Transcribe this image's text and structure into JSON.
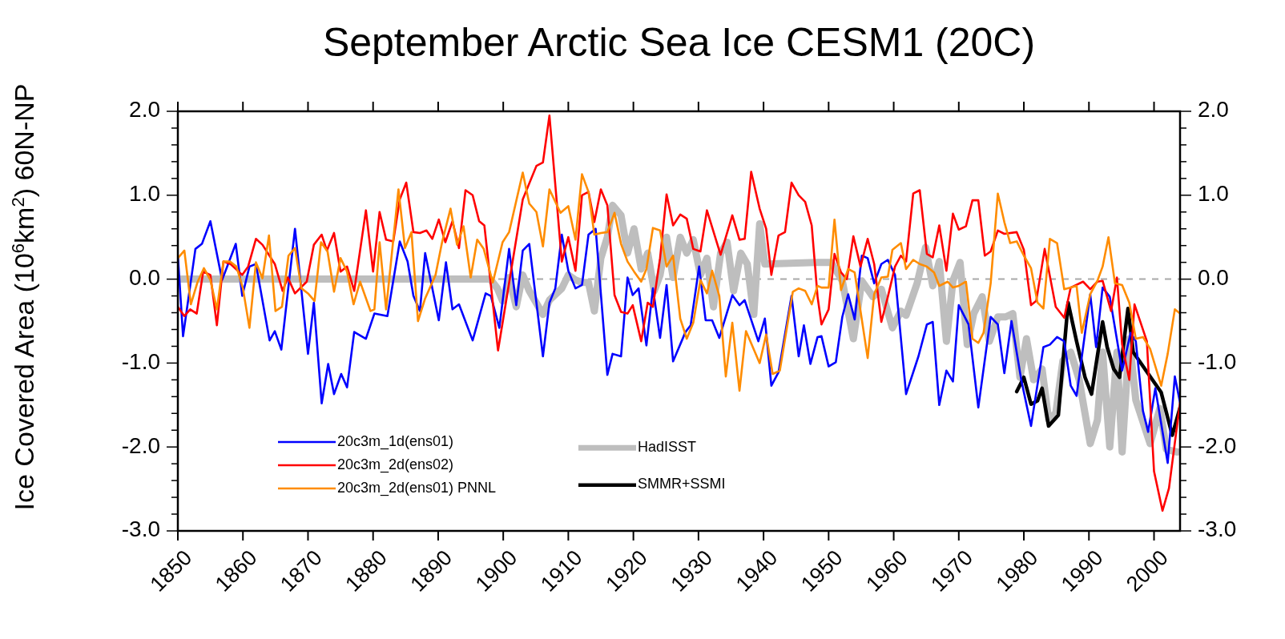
{
  "chart_data": {
    "type": "line",
    "title": "September Arctic Sea Ice CESM1 (20C)",
    "ylabel": "Ice Covered Area (10$^{6}$km$^{2}$) 60N-NP",
    "xlim": [
      1850,
      2004
    ],
    "xticks": [
      1850,
      1860,
      1870,
      1880,
      1890,
      1900,
      1910,
      1920,
      1930,
      1940,
      1950,
      1960,
      1970,
      1980,
      1990,
      2000
    ],
    "ylim": [
      -3,
      2
    ],
    "yticks": [
      {
        "value": -3,
        "label": "-3.0"
      },
      {
        "value": -2.8,
        "label": null
      },
      {
        "value": -2.6,
        "label": null
      },
      {
        "value": -2.4,
        "label": null
      },
      {
        "value": -2.2,
        "label": null
      },
      {
        "value": -2,
        "label": "-2.0"
      },
      {
        "value": -1.8,
        "label": null
      },
      {
        "value": -1.6,
        "label": null
      },
      {
        "value": -1.4,
        "label": null
      },
      {
        "value": -1.2,
        "label": null
      },
      {
        "value": -1,
        "label": "-1.0"
      },
      {
        "value": -0.8,
        "label": null
      },
      {
        "value": -0.6,
        "label": null
      },
      {
        "value": -0.4,
        "label": null
      },
      {
        "value": -0.2,
        "label": null
      },
      {
        "value": 0,
        "label": "0.0"
      },
      {
        "value": 0.2,
        "label": null
      },
      {
        "value": 0.4,
        "label": null
      },
      {
        "value": 0.6,
        "label": null
      },
      {
        "value": 0.8,
        "label": null
      },
      {
        "value": 1,
        "label": "1.0"
      },
      {
        "value": 1.2,
        "label": null
      },
      {
        "value": 1.4,
        "label": null
      },
      {
        "value": 1.6,
        "label": null
      },
      {
        "value": 1.8,
        "label": null
      },
      {
        "value": 2,
        "label": "2.0"
      }
    ],
    "y2lim": [
      -3,
      2
    ],
    "y2ticks": [
      {
        "value": -3,
        "label": "-3.0"
      },
      {
        "value": -2.8,
        "label": null
      },
      {
        "value": -2.6,
        "label": null
      },
      {
        "value": -2.4,
        "label": null
      },
      {
        "value": -2.2,
        "label": null
      },
      {
        "value": -2,
        "label": "-2.0"
      },
      {
        "value": -1.8,
        "label": null
      },
      {
        "value": -1.6,
        "label": null
      },
      {
        "value": -1.4,
        "label": null
      },
      {
        "value": -1.2,
        "label": null
      },
      {
        "value": -1,
        "label": "-1.0"
      },
      {
        "value": -0.8,
        "label": null
      },
      {
        "value": -0.6,
        "label": null
      },
      {
        "value": -0.4,
        "label": null
      },
      {
        "value": -0.2,
        "label": null
      },
      {
        "value": 0,
        "label": "0.0"
      },
      {
        "value": 0.2,
        "label": null
      },
      {
        "value": 0.4,
        "label": null
      },
      {
        "value": 0.6,
        "label": null
      },
      {
        "value": 0.8,
        "label": null
      },
      {
        "value": 1,
        "label": "1.0"
      },
      {
        "value": 1.2,
        "label": null
      },
      {
        "value": 1.4,
        "label": null
      },
      {
        "value": 1.6,
        "label": null
      },
      {
        "value": 1.8,
        "label": null
      },
      {
        "value": 2,
        "label": "2.0"
      }
    ],
    "ref_lines": [
      {
        "axis": "y",
        "value": 0,
        "color": "#a8a8a8",
        "line_style": "dashed"
      }
    ],
    "legend": "bottom left",
    "grid": false,
    "marker": "none",
    "line_style": "solid",
    "series": [
      {
        "name": "20c3m_1d(ens01)",
        "color": "#0000ff",
        "x": [
          1850,
          1850.8,
          1852.7,
          1853.7,
          1855,
          1856.8,
          1858.9,
          1859.9,
          1861,
          1862,
          1864.1,
          1864.9,
          1865.9,
          1868,
          1870,
          1870.9,
          1872.1,
          1873.1,
          1874,
          1875.1,
          1876,
          1877.1,
          1878.9,
          1880.2,
          1882.2,
          1884.1,
          1885.3,
          1886.2,
          1887.2,
          1888,
          1890.1,
          1891.2,
          1892.2,
          1893.2,
          1895.3,
          1897.3,
          1898.1,
          1899.4,
          1900.9,
          1902,
          1903,
          1904,
          1906.1,
          1907.1,
          1908,
          1909,
          1910,
          1911.1,
          1912.1,
          1913.1,
          1914.2,
          1916,
          1916.8,
          1918.1,
          1919.1,
          1919.9,
          1920.8,
          1922,
          1923,
          1924.1,
          1925.1,
          1926.1,
          1928,
          1928.8,
          1930.1,
          1931.1,
          1932.1,
          1933.2,
          1935.2,
          1936.3,
          1937.1,
          1939.2,
          1940.2,
          1941.2,
          1942.3,
          1944.3,
          1945.4,
          1946.2,
          1947.2,
          1948.3,
          1948.9,
          1950,
          1951.1,
          1952.1,
          1953,
          1954,
          1955.1,
          1956,
          1957,
          1958.1,
          1959.1,
          1960.2,
          1961.9,
          1963.8,
          1965.1,
          1966,
          1967,
          1968.1,
          1969.1,
          1970,
          1971.5,
          1973,
          1974.9,
          1976,
          1977,
          1978.1,
          1979.6,
          1981.1,
          1983,
          1984,
          1985.1,
          1986.2,
          1987.2,
          1988.1,
          1990.2,
          1991.1,
          1992.1,
          1993.2,
          1995.1,
          1996.4,
          1997.2,
          1998.3,
          1999.1,
          2000.2,
          2002.1,
          2003.2,
          2004
        ],
        "values": [
          0.28,
          -0.68,
          0.36,
          0.42,
          0.69,
          -0.01,
          0.42,
          -0.2,
          0.15,
          0.18,
          -0.73,
          -0.62,
          -0.84,
          0.6,
          -0.89,
          -0.28,
          -1.48,
          -1.01,
          -1.37,
          -1.13,
          -1.29,
          -0.63,
          -0.71,
          -0.41,
          -0.44,
          0.45,
          0.21,
          -0.2,
          -0.38,
          0.31,
          -0.49,
          0.2,
          -0.36,
          -0.3,
          -0.73,
          -0.17,
          -0.2,
          -0.58,
          0.36,
          -0.31,
          0.34,
          0.42,
          -0.92,
          -0.28,
          -0.11,
          0.53,
          0.1,
          -0.11,
          -0.07,
          0.53,
          0.6,
          -1.14,
          -0.89,
          -0.92,
          0.02,
          -0.19,
          -0.11,
          -0.79,
          -0.11,
          -0.7,
          -0.07,
          -0.98,
          -0.63,
          -0.55,
          0.15,
          -0.49,
          -0.49,
          -0.7,
          -0.19,
          -0.31,
          -0.25,
          -0.74,
          -0.47,
          -1.27,
          -1.11,
          -0.2,
          -0.92,
          -0.55,
          -1.01,
          -0.69,
          -0.68,
          -1.04,
          -0.99,
          -0.45,
          -0.18,
          -0.48,
          0.28,
          0.25,
          -0.05,
          0.18,
          0.23,
          0.05,
          -1.37,
          -0.92,
          -0.54,
          -0.51,
          -1.5,
          -1.09,
          -1.22,
          -0.31,
          -0.54,
          -1.53,
          -0.45,
          -0.54,
          -1.12,
          -0.5,
          -1.2,
          -1.75,
          -0.81,
          -0.78,
          -0.69,
          -0.74,
          -1.27,
          -1.39,
          -0.18,
          -0.81,
          -0.1,
          -0.21,
          -1.09,
          -0.64,
          -0.74,
          -1.57,
          -1.82,
          -1.3,
          -2.19,
          -1.16,
          -1.47
        ]
      },
      {
        "name": "20c3m_2d(ens02)",
        "color": "#ff0000",
        "x": [
          1850,
          1851,
          1851.9,
          1852.9,
          1853.9,
          1855,
          1856,
          1857,
          1858.1,
          1859.9,
          1860.8,
          1862,
          1863,
          1864.9,
          1866.1,
          1866.9,
          1868,
          1869.8,
          1870.9,
          1872.1,
          1872.9,
          1874,
          1875,
          1876,
          1877.1,
          1878.9,
          1880,
          1881,
          1882,
          1883.1,
          1884.1,
          1885.1,
          1886.2,
          1887.2,
          1888.2,
          1889.1,
          1890.1,
          1891.1,
          1892.2,
          1893.2,
          1894.2,
          1895.3,
          1896.3,
          1897.1,
          1899.2,
          1903,
          1905.1,
          1906.1,
          1907.1,
          1909,
          1910,
          1911.1,
          1912.1,
          1913.1,
          1914,
          1915,
          1916,
          1917.1,
          1918.1,
          1919.1,
          1919.9,
          1921.2,
          1922.2,
          1923,
          1924.1,
          1925.1,
          1926.1,
          1927.2,
          1928.2,
          1929.2,
          1930.3,
          1931.3,
          1933.4,
          1935.2,
          1936.3,
          1937.1,
          1938.1,
          1939.4,
          1940.4,
          1941.2,
          1942.3,
          1943.3,
          1944.3,
          1945.4,
          1946.4,
          1947.4,
          1948.3,
          1948.9,
          1950,
          1950.9,
          1951.9,
          1952.8,
          1953.8,
          1954.9,
          1956,
          1957,
          1958.1,
          1959.1,
          1960.2,
          1961.1,
          1961.9,
          1963,
          1964,
          1965.1,
          1966,
          1967,
          1968.1,
          1969.1,
          1970,
          1971.1,
          1972.1,
          1973,
          1974,
          1974.9,
          1976,
          1977,
          1978.9,
          1980,
          1981.1,
          1981.9,
          1983.2,
          1984.9,
          1986.2,
          1987.2,
          1989.1,
          1990.2,
          1991.3,
          1992.1,
          1993.4,
          1994.3,
          1995.1,
          1996.2,
          1997,
          1998.9,
          2000,
          2001.3,
          2002.3,
          2004
        ],
        "values": [
          -0.33,
          -0.44,
          -0.36,
          -0.41,
          0.09,
          0.05,
          -0.55,
          0.21,
          0.18,
          0.05,
          0.15,
          0.48,
          0.41,
          0.18,
          -0.14,
          0.02,
          -0.17,
          -0.03,
          0.41,
          0.53,
          0.34,
          0.55,
          0.09,
          0.15,
          -0.14,
          0.82,
          0.09,
          0.8,
          0.47,
          0.45,
          0.95,
          1.15,
          0.56,
          0.55,
          0.58,
          0.48,
          0.71,
          0.44,
          0.69,
          0.37,
          1.06,
          1,
          0.69,
          0.64,
          -0.85,
          0.95,
          1.35,
          1.39,
          1.95,
          0.21,
          0.5,
          0.1,
          1,
          1.04,
          0.68,
          1.07,
          0.88,
          -0.19,
          -0.39,
          -0.41,
          -0.31,
          -0.74,
          -0.28,
          -0.33,
          0.25,
          1.01,
          0.64,
          0.77,
          0.72,
          0.36,
          0.33,
          0.82,
          0.29,
          0.76,
          0.47,
          0.48,
          1.28,
          0.84,
          0.6,
          0.05,
          0.52,
          0.56,
          1.15,
          1,
          0.92,
          0.64,
          -0.21,
          -0.54,
          -0.36,
          0.3,
          0.08,
          0,
          0.51,
          0.15,
          0.48,
          0.18,
          -0.51,
          -0.21,
          0.15,
          0.28,
          0.21,
          1.02,
          1.06,
          0.3,
          0.26,
          0.64,
          0.1,
          0.78,
          0.59,
          0.63,
          0.94,
          0.94,
          0.28,
          0.33,
          0.58,
          0.54,
          0.56,
          0.35,
          -0.31,
          -0.26,
          0.36,
          -0.33,
          -0.46,
          -0.1,
          -0.03,
          -0.12,
          -0.03,
          -0.02,
          -0.38,
          0.02,
          -0.78,
          -1.2,
          -0.3,
          -0.74,
          -2.29,
          -2.76,
          -2.49,
          -1.47
        ]
      },
      {
        "name": "20c3m_2d(ens01) PNNL",
        "color": "#ff8c00",
        "x": [
          1850,
          1851,
          1852,
          1853,
          1854,
          1855,
          1856,
          1857,
          1858,
          1859,
          1860,
          1861,
          1862,
          1863,
          1864,
          1865,
          1866,
          1867,
          1868,
          1869,
          1870,
          1871,
          1872,
          1873,
          1874,
          1875,
          1876,
          1877,
          1878,
          1879.6,
          1880.2,
          1881,
          1882,
          1883.9,
          1884.9,
          1885.9,
          1886.9,
          1888,
          1889.6,
          1890.6,
          1891.9,
          1892.9,
          1893.9,
          1895,
          1896,
          1897,
          1898.4,
          1899.9,
          1900.9,
          1903,
          1904,
          1905.1,
          1906.1,
          1907.1,
          1908.8,
          1910,
          1911.1,
          1912.1,
          1913.1,
          1914,
          1915,
          1916,
          1917.1,
          1918.1,
          1919.1,
          1920.1,
          1921.2,
          1922,
          1923,
          1924.1,
          1925.1,
          1926.1,
          1927.2,
          1928.2,
          1929.2,
          1930.3,
          1931.3,
          1932.1,
          1933.2,
          1934.2,
          1935.2,
          1936.3,
          1937.3,
          1939.4,
          1940.4,
          1941.4,
          1942.5,
          1944.5,
          1945.4,
          1946.4,
          1947.4,
          1948.3,
          1948.9,
          1950,
          1950.9,
          1951.9,
          1953,
          1954,
          1956,
          1957,
          1958.1,
          1959.1,
          1959.8,
          1961.1,
          1961.9,
          1963,
          1964,
          1965.1,
          1966.2,
          1967,
          1968.3,
          1969.1,
          1970,
          1971.1,
          1972.1,
          1973,
          1973.8,
          1974.9,
          1976,
          1977,
          1977.9,
          1978.9,
          1980,
          1981.1,
          1982.1,
          1983,
          1984,
          1985.1,
          1986.2,
          1988.1,
          1988.9,
          1990.2,
          1991.3,
          1992.1,
          1993,
          1994,
          1995.1,
          1996.2,
          1997.2,
          1998.3,
          1999.4,
          2001.1,
          2002.1,
          2003.2,
          2004
        ],
        "values": [
          0.25,
          0.34,
          -0.3,
          -0.04,
          0.13,
          -0.01,
          -0.36,
          0.21,
          0.21,
          0.15,
          -0.11,
          -0.58,
          0.2,
          0.01,
          0.52,
          -0.38,
          -0.33,
          0.28,
          0.37,
          -0.11,
          -0.17,
          -0.26,
          0.44,
          0.33,
          -0.15,
          0.25,
          0.09,
          -0.3,
          -0.03,
          -0.38,
          -0.36,
          0.44,
          -0.36,
          1.07,
          0.37,
          0.56,
          -0.5,
          -0.23,
          0.05,
          0.44,
          0.84,
          0.41,
          0.63,
          0.02,
          0.47,
          0.36,
          -0.04,
          0.44,
          0.56,
          1.27,
          0.9,
          0.8,
          0.39,
          1.07,
          0.79,
          0.87,
          0.47,
          1.25,
          1.04,
          0.53,
          0.55,
          0.56,
          0.79,
          0.42,
          0.21,
          0.09,
          -0.03,
          0.12,
          0.61,
          0.58,
          0.15,
          0.28,
          -0.47,
          -0.71,
          -0.52,
          -0.01,
          -0.17,
          0.1,
          -0.2,
          -1.16,
          -0.52,
          -1.33,
          -0.62,
          -1,
          -0.66,
          -1.13,
          -1.09,
          -0.15,
          -0.11,
          -0.14,
          -0.3,
          -0.08,
          -0.1,
          -0.1,
          0.71,
          -0.13,
          0.12,
          0.08,
          -0.94,
          -0.18,
          0.02,
          0.03,
          0.35,
          0.43,
          0.12,
          0.23,
          0.18,
          0.15,
          0.08,
          -0.08,
          -0.03,
          -0.1,
          -0.08,
          -0.03,
          -0.71,
          -0.76,
          -0.64,
          -0.05,
          1.02,
          0.68,
          0.43,
          0.45,
          0.28,
          0.13,
          -0.28,
          -0.35,
          0.48,
          0.43,
          -0.12,
          -0.08,
          -0.64,
          -0.18,
          -0.02,
          0.15,
          0.5,
          -0.05,
          -0.07,
          -0.28,
          -0.71,
          -0.69,
          -0.83,
          -1.27,
          -0.89,
          -0.36,
          -0.41
        ]
      },
      {
        "name": "HadISST",
        "color": "#bebebe",
        "x": [
          1850,
          1898,
          1899.1,
          1899.9,
          1900.9,
          1902,
          1903,
          1904,
          1906.1,
          1907.1,
          1909,
          1910,
          1911.1,
          1912.1,
          1913.1,
          1914,
          1915,
          1916,
          1916.8,
          1918.1,
          1919.1,
          1920.1,
          1921.2,
          1922.2,
          1923.2,
          1924.1,
          1925.1,
          1926.1,
          1927.2,
          1928.2,
          1929.2,
          1930.3,
          1931.3,
          1932.3,
          1933.4,
          1934.4,
          1935.4,
          1936.5,
          1937.5,
          1938.5,
          1939.4,
          1940.2,
          1948.3,
          1950.4,
          1952.1,
          1953.8,
          1955.1,
          1956.8,
          1958.1,
          1959.8,
          1961.1,
          1961.9,
          1963.6,
          1964.9,
          1966,
          1967,
          1968.1,
          1969.1,
          1970.2,
          1971.3,
          1972.3,
          1973.6,
          1974.7,
          1976,
          1977.2,
          1978.3,
          1979.4,
          1980.4,
          1981.5,
          1982.8,
          1983.8,
          1984.9,
          1986,
          1987.2,
          1988.5,
          1990.2,
          1991.3,
          1992.1,
          1993.2,
          1994.3,
          1995.1,
          1996.2,
          1997.2,
          1999.4,
          2000.9,
          2001.9,
          2003.6
        ],
        "values": [
          0,
          0,
          -0.11,
          -0.26,
          0.02,
          -0.33,
          0.05,
          -0.14,
          -0.42,
          -0.25,
          -0.11,
          0.05,
          -0.01,
          -0.04,
          -0.04,
          -0.38,
          0.25,
          0.5,
          0.88,
          0.76,
          0.31,
          0.6,
          0.12,
          0.31,
          -0.14,
          0.05,
          0.5,
          0.02,
          0.5,
          0.31,
          0.47,
          0.05,
          0.25,
          -0.33,
          0.31,
          0.44,
          -0.14,
          0.31,
          0.18,
          -0.42,
          0.66,
          0.18,
          0.2,
          0.2,
          -0.02,
          -0.71,
          -0.02,
          -0.21,
          -0.12,
          -0.58,
          -0.38,
          -0.43,
          -0.05,
          0.38,
          -0.08,
          0.21,
          -0.74,
          -0.02,
          0.2,
          -0.78,
          -0.41,
          -0.21,
          -0.74,
          -0.45,
          -0.45,
          -0.41,
          -1.17,
          -0.71,
          -1.2,
          -1.07,
          -1.67,
          -1.6,
          -0.97,
          -0.87,
          -1.2,
          -1.96,
          -1.68,
          -0.87,
          -2,
          -0.87,
          -2.06,
          -0.71,
          -1.44,
          -1.96,
          -1.54,
          -2.03,
          -2.06
        ]
      },
      {
        "name": "SMMR+SSMI",
        "color": "#000000",
        "x": [
          1978.9,
          1980,
          1981.1,
          1982.1,
          1982.8,
          1983.8,
          1985.3,
          1986.8,
          1988.1,
          1989.4,
          1990.4,
          1992.1,
          1992.8,
          1993.8,
          1994.7,
          1996,
          1996.8,
          2001.1,
          2002.8,
          2004
        ],
        "values": [
          -1.34,
          -1.17,
          -1.49,
          -1.45,
          -1.3,
          -1.75,
          -1.62,
          -0.28,
          -0.74,
          -1.17,
          -1.37,
          -0.51,
          -0.81,
          -1.07,
          -1.17,
          -0.35,
          -0.87,
          -1.35,
          -1.86,
          -1.53
        ]
      }
    ]
  }
}
